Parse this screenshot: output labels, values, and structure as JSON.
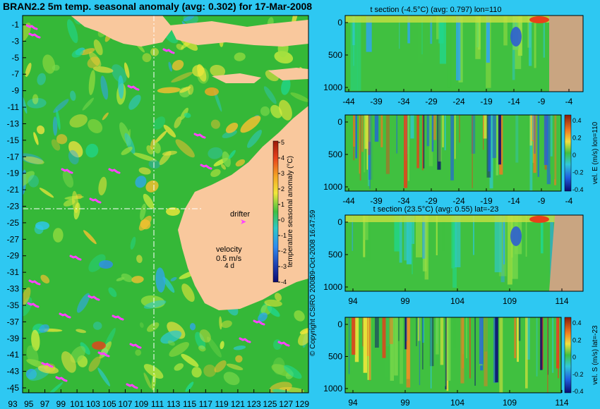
{
  "main_title": "BRAN2.2 5m temp. seasonal anomaly (avg: 0.302) for 17-Mar-2008",
  "colors": {
    "background": "#2ec8f2",
    "land": "#f9c89d",
    "section_land": "#c9a581",
    "drifter": "#ff44ff",
    "ocean_base": "#35b838"
  },
  "map": {
    "lat_ticks": [
      "-1",
      "-3",
      "-5",
      "-7",
      "-9",
      "-11",
      "-13",
      "-15",
      "-17",
      "-19",
      "-21",
      "-23",
      "-25",
      "-27",
      "-29",
      "-31",
      "-33",
      "-35",
      "-37",
      "-39",
      "-41",
      "-43",
      "-45"
    ],
    "lon_ticks": [
      "93",
      "95",
      "97",
      "99",
      "101",
      "103",
      "105",
      "107",
      "109",
      "111",
      "113",
      "115",
      "117",
      "119",
      "121",
      "123",
      "125",
      "127",
      "129"
    ],
    "colorbar_ticks": [
      "5",
      "4",
      "3",
      "2",
      "1",
      "0",
      "-1",
      "-2",
      "-3",
      "-4"
    ],
    "colorbar_label": "temperature seasonal anomaly (°C)",
    "drifter_label": "drifter",
    "velocity_label": "velocity",
    "velocity_scale": "0.5 m/s",
    "velocity_angle": "4 d",
    "timestamp": "09-Oct-2008 16:47:59",
    "copyright": "© Copyright CSIRO 2008"
  },
  "panels": [
    {
      "title": "t section (-4.5°C) (avg: 0.797) lon=110",
      "yticks": [
        "0",
        "500",
        "1000"
      ],
      "xticks": [
        "-44",
        "-39",
        "-34",
        "-29",
        "-24",
        "-19",
        "-14",
        "-9",
        "-4"
      ]
    },
    {
      "title": "",
      "yticks": [
        "0",
        "500",
        "1000"
      ],
      "xticks": [
        "-44",
        "-39",
        "-34",
        "-29",
        "-24",
        "-19",
        "-14",
        "-9",
        "-4"
      ],
      "cbar_ticks": [
        "0.4",
        "0.2",
        "0",
        "-0.2",
        "-0.4"
      ],
      "cbar_label": "vel. E (m/s) lon=110"
    },
    {
      "title": "t section (23.5°C) (avg: 0.55) lat=-23",
      "yticks": [
        "0",
        "500",
        "1000"
      ],
      "xticks": [
        "94",
        "99",
        "104",
        "109",
        "114"
      ]
    },
    {
      "title": "",
      "yticks": [
        "0",
        "500",
        "1000"
      ],
      "xticks": [
        "94",
        "99",
        "104",
        "109",
        "114"
      ],
      "cbar_ticks": [
        "0.4",
        "0.2",
        "0",
        "-0.2",
        "-0.4"
      ],
      "cbar_label": "vel. S (m/s) lat=-23"
    }
  ],
  "chart_data": [
    {
      "type": "heatmap",
      "title": "BRAN2.2 5m temp. seasonal anomaly (avg: 0.302) for 17-Mar-2008",
      "x_ticks": [
        93,
        95,
        97,
        99,
        101,
        103,
        105,
        107,
        109,
        111,
        113,
        115,
        117,
        119,
        121,
        123,
        125,
        127,
        129
      ],
      "y_ticks": [
        -1,
        -3,
        -5,
        -7,
        -9,
        -11,
        -13,
        -15,
        -17,
        -19,
        -21,
        -23,
        -25,
        -27,
        -29,
        -31,
        -33,
        -35,
        -37,
        -39,
        -41,
        -43,
        -45
      ],
      "xlim": [
        92,
        130
      ],
      "ylim": [
        -45,
        0
      ],
      "colorbar_range": [
        -4,
        5
      ]
    },
    {
      "type": "heatmap",
      "title": "t section (-4.5°C) (avg: 0.797) lon=110",
      "xlim": [
        -45,
        -2
      ],
      "ylim": [
        1050,
        0
      ]
    },
    {
      "type": "heatmap",
      "xlim": [
        -45,
        -2
      ],
      "ylim": [
        1050,
        0
      ],
      "colorbar_range": [
        -0.4,
        0.4
      ],
      "colorbar_label": "vel. E (m/s) lon=110"
    },
    {
      "type": "heatmap",
      "title": "t section (23.5°C) (avg: 0.55) lat=-23",
      "xlim": [
        92.5,
        117
      ],
      "ylim": [
        1050,
        0
      ]
    },
    {
      "type": "heatmap",
      "xlim": [
        92.5,
        117
      ],
      "ylim": [
        1050,
        0
      ],
      "colorbar_range": [
        -0.4,
        0.4
      ],
      "colorbar_label": "vel. S (m/s) lat=-23"
    }
  ]
}
